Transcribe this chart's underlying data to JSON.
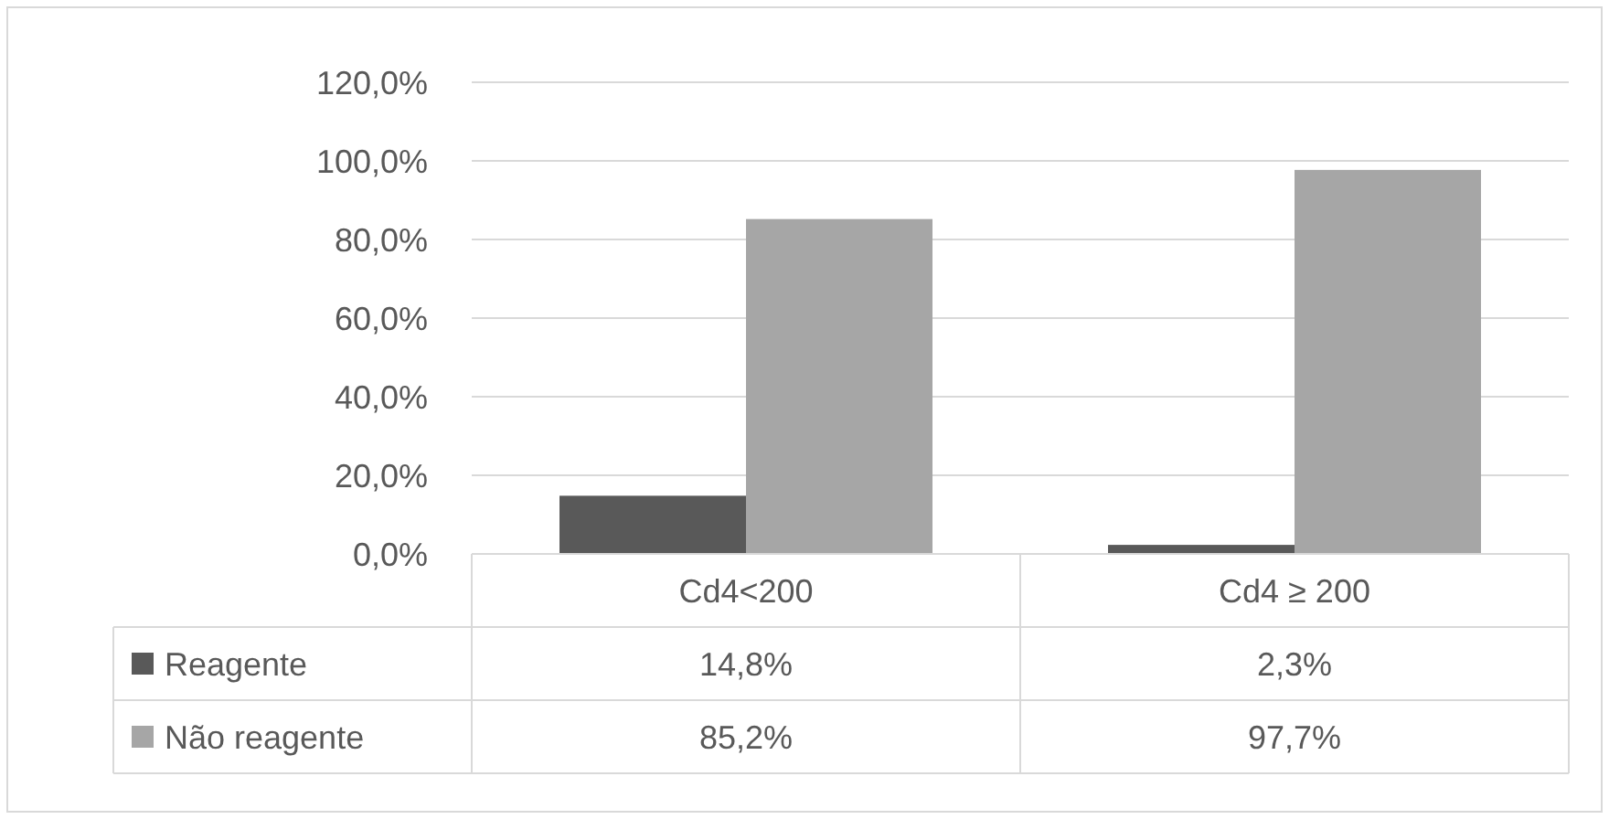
{
  "chart_data": {
    "type": "bar",
    "categories": [
      "Cd4<200",
      "Cd4 ≥ 200"
    ],
    "series": [
      {
        "name": "Reagente",
        "color": "#595959",
        "values": [
          14.8,
          2.3
        ],
        "value_labels": [
          "14,8%",
          "2,3%"
        ]
      },
      {
        "name": "Não reagente",
        "color": "#a6a6a6",
        "values": [
          85.2,
          97.7
        ],
        "value_labels": [
          "85,2%",
          "97,7%"
        ]
      }
    ],
    "ylim": [
      0,
      120
    ],
    "yticks": [
      {
        "value": 0,
        "label": "0,0%"
      },
      {
        "value": 20,
        "label": "20,0%"
      },
      {
        "value": 40,
        "label": "40,0%"
      },
      {
        "value": 60,
        "label": "60,0%"
      },
      {
        "value": 80,
        "label": "80,0%"
      },
      {
        "value": 100,
        "label": "100,0%"
      },
      {
        "value": 120,
        "label": "120,0%"
      }
    ],
    "grid": "y",
    "legend": "bottom"
  }
}
